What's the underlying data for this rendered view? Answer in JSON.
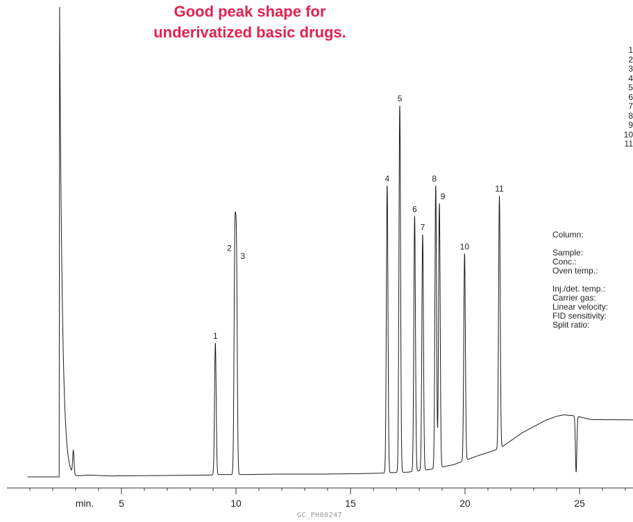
{
  "title": {
    "line1": "Good peak shape for",
    "line2": "underivatized basic drugs."
  },
  "figure_code": "GC_PH00247",
  "legend_numbers": [
    "1",
    "2",
    "3",
    "4",
    "5",
    "6",
    "7",
    "8",
    "9",
    "10",
    "11"
  ],
  "conditions": {
    "column": "Column:",
    "sample": "Sample:",
    "conc": "Conc.:",
    "oven_temp": "Oven temp.:",
    "inj_det_temp": "Inj./det. temp.:",
    "carrier_gas": "Carrier gas:",
    "linear_velocity": "Linear velocity:",
    "fid_sensitivity": "FID sensitivity:",
    "split_ratio": "Split ratio:"
  },
  "chart_data": {
    "type": "line",
    "title": "Good peak shape for underivatized basic drugs.",
    "xlabel": "min.",
    "ylabel": "",
    "xlim": [
      0.9,
      28.2
    ],
    "ylim": [
      0,
      100
    ],
    "x_ticks": [
      5,
      10,
      15,
      20,
      25
    ],
    "x_tick_labels": [
      "5",
      "10",
      "15",
      "20",
      "25"
    ],
    "grid": false,
    "baseline": {
      "x": [
        0.9,
        2.9,
        3.5,
        4.5,
        7.0,
        9.0,
        9.05,
        10.5,
        12.0,
        14.0,
        15.5,
        16.4,
        16.7,
        17.5,
        18.5,
        19.5,
        20.5,
        21.5,
        22.5,
        23.5,
        24.0,
        24.3,
        24.8,
        25.5,
        28.2
      ],
      "y": [
        0.0,
        0.0,
        0.4,
        0.2,
        0.3,
        0.4,
        0.5,
        0.5,
        0.6,
        0.6,
        0.7,
        0.8,
        0.9,
        1.0,
        1.6,
        2.6,
        4.4,
        6.0,
        9.4,
        12.0,
        12.9,
        13.2,
        13.0,
        12.2,
        12.1
      ]
    },
    "solvent_peak": {
      "x": 2.3,
      "height": 100
    },
    "peaks": [
      {
        "label": "1",
        "rt": 9.1,
        "height": 28.5
      },
      {
        "label": "2",
        "rt": 9.95,
        "height": 47.2
      },
      {
        "label": "3",
        "rt": 10.02,
        "height": 45.5
      },
      {
        "label": "4",
        "rt": 16.6,
        "height": 62.0
      },
      {
        "label": "5",
        "rt": 17.15,
        "height": 79.0
      },
      {
        "label": "6",
        "rt": 17.8,
        "height": 55.5
      },
      {
        "label": "7",
        "rt": 18.15,
        "height": 51.6
      },
      {
        "label": "8",
        "rt": 18.72,
        "height": 62.0
      },
      {
        "label": "9",
        "rt": 18.88,
        "height": 58.2
      },
      {
        "label": "10",
        "rt": 19.98,
        "height": 47.5
      },
      {
        "label": "11",
        "rt": 21.5,
        "height": 59.8
      }
    ],
    "minor_peaks": [
      {
        "x": 2.9,
        "height": 5.0
      },
      {
        "x": 24.85,
        "height": 1.0
      }
    ]
  },
  "colors": {
    "title": "#e0224f",
    "trace": "#1a1a1a",
    "text": "#222222"
  }
}
